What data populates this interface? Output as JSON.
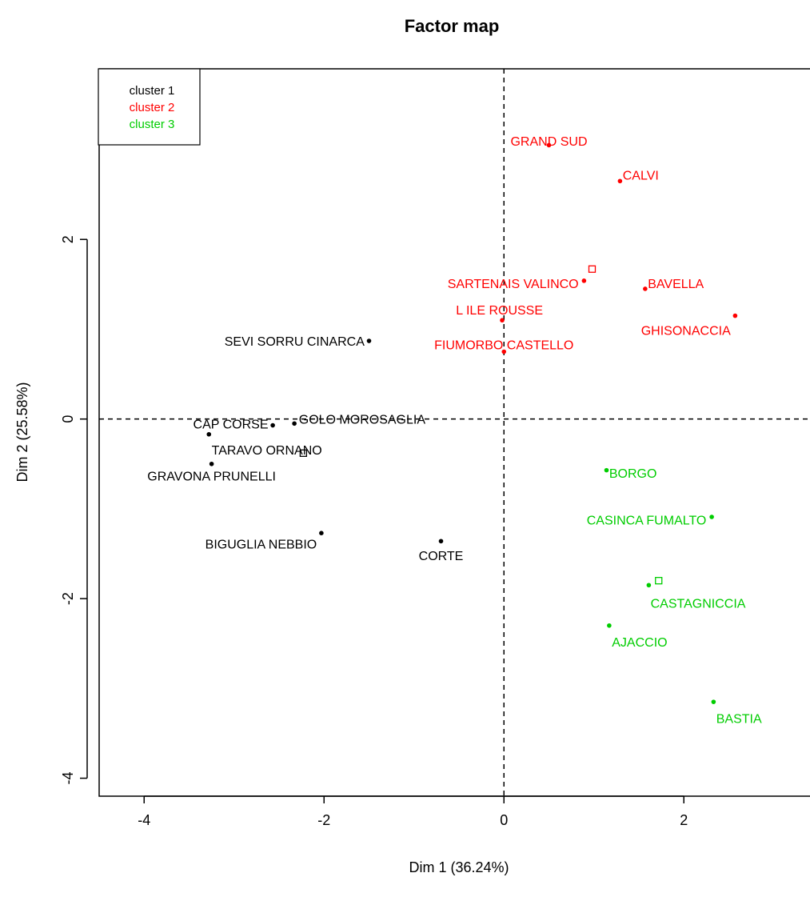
{
  "chart_data": {
    "type": "scatter",
    "title": "Factor map",
    "xlabel": "Dim 1 (36.24%)",
    "ylabel": "Dim 2 (25.58%)",
    "xlim": [
      -4.5,
      3.5
    ],
    "ylim": [
      -4.2,
      3.9
    ],
    "x_ticks": [
      -4,
      -2,
      0,
      2
    ],
    "y_ticks": [
      -4,
      -2,
      0,
      2
    ],
    "reference_lines": {
      "x": 0,
      "y": 0,
      "style": "dashed"
    },
    "legend": {
      "position": "top-left",
      "entries": [
        {
          "label": "cluster 1",
          "color": "#000000"
        },
        {
          "label": "cluster 2",
          "color": "#FF0000"
        },
        {
          "label": "cluster 3",
          "color": "#00CD00"
        }
      ]
    },
    "points": [
      {
        "name": "SEVI SORRU CINARCA",
        "x": -1.5,
        "y": 0.87,
        "cluster": 1,
        "anchor": "end",
        "dx": -0.05,
        "dy": 0.0
      },
      {
        "name": "CAP CORSE",
        "x": -2.57,
        "y": -0.07,
        "cluster": 1,
        "anchor": "end",
        "dx": -0.05,
        "dy": 0.02
      },
      {
        "name": "GOLO MOROSAGLIA",
        "x": -2.33,
        "y": -0.05,
        "cluster": 1,
        "anchor": "start",
        "dx": 0.05,
        "dy": 0.05
      },
      {
        "name": "TARAVO ORNANO",
        "x": -3.28,
        "y": -0.17,
        "cluster": 1,
        "anchor": "start",
        "dx": 0.03,
        "dy": -0.17
      },
      {
        "name": "GRAVONA PRUNELLI",
        "x": -3.25,
        "y": -0.5,
        "cluster": 1,
        "anchor": "middle",
        "dx": 0.0,
        "dy": -0.13
      },
      {
        "name": "BIGUGLIA NEBBIO",
        "x": -2.03,
        "y": -1.27,
        "cluster": 1,
        "anchor": "end",
        "dx": -0.05,
        "dy": -0.12
      },
      {
        "name": "CORTE",
        "x": -0.7,
        "y": -1.36,
        "cluster": 1,
        "anchor": "middle",
        "dx": 0.0,
        "dy": -0.16
      },
      {
        "name": "GRAND SUD",
        "x": 0.5,
        "y": 3.05,
        "cluster": 2,
        "anchor": "middle",
        "dx": 0.0,
        "dy": 0.05
      },
      {
        "name": "CALVI",
        "x": 1.29,
        "y": 2.65,
        "cluster": 2,
        "anchor": "start",
        "dx": 0.03,
        "dy": 0.07
      },
      {
        "name": "SARTENAIS VALINCO",
        "x": 0.89,
        "y": 1.54,
        "cluster": 2,
        "anchor": "end",
        "dx": -0.06,
        "dy": -0.03
      },
      {
        "name": "BAVELLA",
        "x": 1.57,
        "y": 1.45,
        "cluster": 2,
        "anchor": "start",
        "dx": 0.03,
        "dy": 0.06
      },
      {
        "name": "L ILE ROUSSE",
        "x": -0.02,
        "y": 1.1,
        "cluster": 2,
        "anchor": "middle",
        "dx": -0.03,
        "dy": 0.12
      },
      {
        "name": "GHISONACCIA",
        "x": 2.57,
        "y": 1.15,
        "cluster": 2,
        "anchor": "end",
        "dx": -0.05,
        "dy": -0.16
      },
      {
        "name": "FIUMORBO CASTELLO",
        "x": 0.0,
        "y": 0.75,
        "cluster": 2,
        "anchor": "middle",
        "dx": 0.0,
        "dy": 0.08
      },
      {
        "name": "BORGO",
        "x": 1.14,
        "y": -0.57,
        "cluster": 3,
        "anchor": "start",
        "dx": 0.03,
        "dy": -0.03
      },
      {
        "name": "CASINCA FUMALTO",
        "x": 2.31,
        "y": -1.09,
        "cluster": 3,
        "anchor": "end",
        "dx": -0.06,
        "dy": -0.03
      },
      {
        "name": "CASTAGNICCIA",
        "x": 1.61,
        "y": -1.85,
        "cluster": 3,
        "anchor": "start",
        "dx": 0.02,
        "dy": -0.2
      },
      {
        "name": "AJACCIO",
        "x": 1.17,
        "y": -2.3,
        "cluster": 3,
        "anchor": "start",
        "dx": 0.03,
        "dy": -0.18
      },
      {
        "name": "BASTIA",
        "x": 2.33,
        "y": -3.15,
        "cluster": 3,
        "anchor": "start",
        "dx": 0.03,
        "dy": -0.18
      }
    ],
    "cluster_centers": [
      {
        "cluster": 1,
        "x": -2.23,
        "y": -0.38
      },
      {
        "cluster": 2,
        "x": 0.98,
        "y": 1.67
      },
      {
        "cluster": 3,
        "x": 1.72,
        "y": -1.8
      }
    ]
  }
}
